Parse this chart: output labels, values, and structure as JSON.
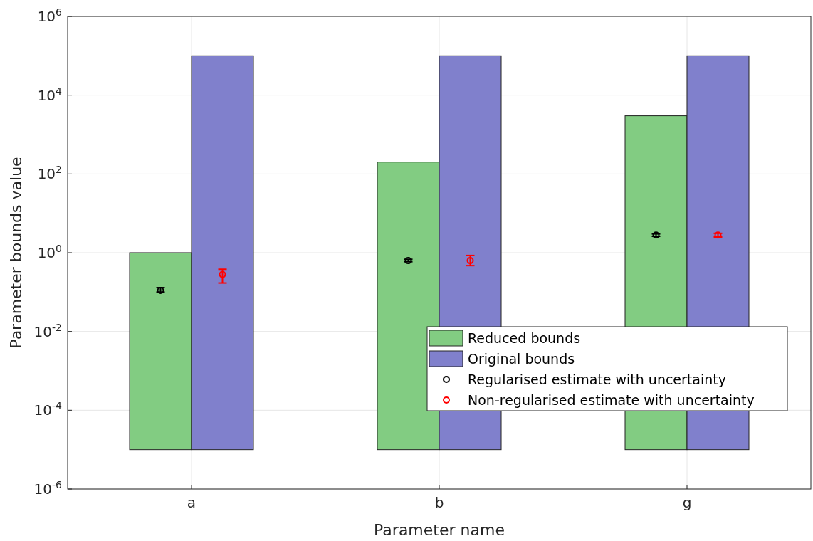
{
  "chart_data": {
    "type": "bar",
    "xlabel": "Parameter name",
    "ylabel": "Parameter bounds value",
    "categories": [
      "a",
      "b",
      "g"
    ],
    "log": true,
    "ylim": [
      1e-06,
      1000000
    ],
    "yticks": [
      {
        "value": 1e-06,
        "label": "10$^{-6}$"
      },
      {
        "value": 0.0001,
        "label": "10$^{-4}$"
      },
      {
        "value": 0.01,
        "label": "10$^{-2}$"
      },
      {
        "value": 1,
        "label": "10$^{0}$"
      },
      {
        "value": 100,
        "label": "10$^{2}$"
      },
      {
        "value": 10000,
        "label": "10$^{4}$"
      },
      {
        "value": 1000000,
        "label": "10$^{6}$"
      }
    ],
    "grid": true,
    "legend": "bottom right",
    "marker": "circle",
    "series": [
      {
        "name": "Reduced bounds",
        "color": "#82cc82",
        "base": [
          1e-05,
          1e-05,
          1e-05
        ],
        "values": [
          1,
          200,
          3000
        ]
      },
      {
        "name": "Original bounds",
        "color": "#8080cc",
        "base": [
          1e-05,
          1e-05,
          1e-05
        ],
        "values": [
          100000,
          100000,
          100000
        ]
      },
      {
        "type": "scatter",
        "name": "Regularised estimate with uncertainty",
        "color": "#000000",
        "x": [
          "a",
          "b",
          "g"
        ],
        "values": [
          0.11,
          0.63,
          2.8
        ],
        "errors": [
          [
            0.1,
            0.13
          ],
          [
            0.59,
            0.68
          ],
          [
            2.6,
            3
          ]
        ]
      },
      {
        "type": "scatter",
        "name": "Non-regularised estimate with uncertainty",
        "color": "#ff0000",
        "x": [
          "a",
          "b",
          "g"
        ],
        "values": [
          0.28,
          0.63,
          2.8
        ],
        "errors": [
          [
            0.17,
            0.38
          ],
          [
            0.47,
            0.85
          ],
          [
            2.5,
            3.1
          ]
        ]
      }
    ]
  }
}
